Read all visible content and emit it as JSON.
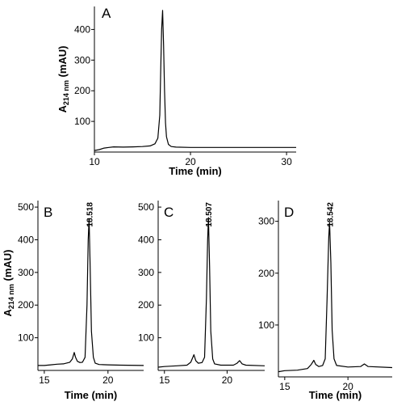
{
  "chart_data": [
    {
      "type": "line",
      "panel": "A",
      "xlabel": "Time (min)",
      "ylabel_main": "A",
      "ylabel_sub": "214 nm",
      "ylabel_unit": "(mAU)",
      "xlim": [
        10,
        31
      ],
      "ylim": [
        0,
        475
      ],
      "xticks": [
        10,
        20,
        30
      ],
      "yticks": [
        100,
        200,
        300,
        400
      ],
      "series": [
        {
          "x": [
            10.0,
            10.5,
            11.0,
            11.5,
            12.0,
            13.0,
            14.0,
            15.0,
            15.8,
            16.3,
            16.6,
            16.8,
            16.9,
            17.0,
            17.1,
            17.2,
            17.3,
            17.4,
            17.5,
            17.7,
            18.0,
            18.5,
            20.0,
            25.0,
            31.0
          ],
          "y": [
            5,
            8,
            13,
            15,
            17,
            16,
            17,
            18,
            20,
            27,
            45,
            120,
            260,
            400,
            462,
            350,
            200,
            95,
            50,
            25,
            18,
            16,
            15,
            15,
            15
          ]
        }
      ]
    },
    {
      "type": "line",
      "panel": "B",
      "xlabel": "Time (min)",
      "ylabel_main": "A",
      "ylabel_sub": "214 nm",
      "ylabel_unit": "(mAU)",
      "xlim": [
        14.5,
        22.8
      ],
      "ylim": [
        0,
        520
      ],
      "xticks": [
        15,
        20
      ],
      "yticks": [
        100,
        200,
        300,
        400,
        500
      ],
      "peak_label": "18.518",
      "peak_label_x": 18.518,
      "series": [
        {
          "x": [
            14.5,
            15.0,
            15.5,
            16.0,
            16.5,
            17.0,
            17.2,
            17.35,
            17.45,
            17.6,
            17.8,
            18.0,
            18.2,
            18.35,
            18.45,
            18.52,
            18.6,
            18.7,
            18.85,
            19.0,
            19.3,
            20.0,
            21.0,
            22.8
          ],
          "y": [
            15,
            15,
            17,
            19,
            20,
            25,
            35,
            55,
            40,
            28,
            24,
            25,
            40,
            200,
            400,
            465,
            320,
            120,
            40,
            22,
            18,
            17,
            16,
            15
          ]
        }
      ]
    },
    {
      "type": "line",
      "panel": "C",
      "xlabel": "",
      "xlim": [
        14.5,
        23.0
      ],
      "ylim": [
        0,
        520
      ],
      "xticks": [
        15,
        20
      ],
      "yticks": [
        100,
        200,
        300,
        400,
        500
      ],
      "peak_label": "18.507",
      "peak_label_x": 18.507,
      "series": [
        {
          "x": [
            14.5,
            15.0,
            16.0,
            16.8,
            17.1,
            17.35,
            17.5,
            17.7,
            18.0,
            18.2,
            18.35,
            18.45,
            18.51,
            18.6,
            18.7,
            18.85,
            19.0,
            19.5,
            20.5,
            20.8,
            21.0,
            21.2,
            21.5,
            23.0
          ],
          "y": [
            10,
            12,
            14,
            16,
            25,
            48,
            30,
            22,
            24,
            40,
            220,
            400,
            468,
            320,
            120,
            35,
            20,
            16,
            16,
            22,
            30,
            20,
            16,
            14
          ]
        }
      ]
    },
    {
      "type": "line",
      "panel": "D",
      "xlabel": "Time (min)",
      "xlim": [
        14.5,
        23.5
      ],
      "ylim": [
        0,
        340
      ],
      "xticks": [
        15,
        20
      ],
      "yticks": [
        100,
        200,
        300
      ],
      "peak_label": "18.542",
      "peak_label_x": 18.542,
      "series": [
        {
          "x": [
            14.5,
            15.0,
            16.0,
            16.8,
            17.1,
            17.3,
            17.45,
            17.7,
            18.0,
            18.2,
            18.35,
            18.48,
            18.55,
            18.65,
            18.75,
            18.9,
            19.1,
            20.0,
            21.0,
            21.3,
            21.6,
            23.5
          ],
          "y": [
            10,
            12,
            13,
            16,
            24,
            32,
            24,
            20,
            22,
            35,
            150,
            270,
            298,
            220,
            90,
            35,
            22,
            19,
            20,
            25,
            20,
            18
          ]
        }
      ]
    }
  ]
}
